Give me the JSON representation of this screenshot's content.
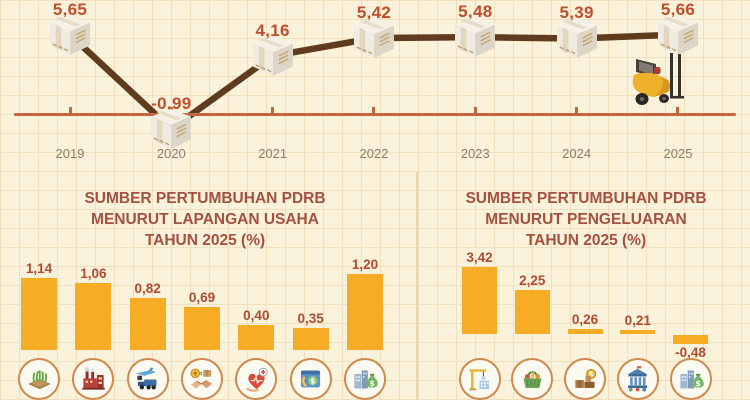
{
  "colors": {
    "background": "#FBF2DB",
    "grid": "#F2DFBD",
    "line": "#5F3C1D",
    "axis": "#C2663F",
    "value_label": "#C14F2E",
    "bar_label": "#B04B30",
    "year_label": "#8E7D68",
    "bar": "#F6AD25",
    "title": "#A6503E",
    "icon_ring": "#D0894E",
    "divider": "#E9D5AE"
  },
  "chart_data": [
    {
      "type": "line",
      "name": "pdrb-growth-by-year",
      "categories": [
        "2019",
        "2020",
        "2021",
        "2022",
        "2023",
        "2024",
        "2025"
      ],
      "values": [
        5.65,
        -0.99,
        4.16,
        5.42,
        5.48,
        5.39,
        5.66
      ],
      "value_labels": [
        "5,65",
        "-0,99",
        "4,16",
        "5,42",
        "5,48",
        "5,39",
        "5,66"
      ],
      "marker": "cardboard-box",
      "annotation": "forklift-carrying-last-box",
      "baseline": 0,
      "grid": true,
      "legend": "none"
    },
    {
      "type": "bar",
      "name": "growth-sources-by-industry",
      "title_lines": [
        "SUMBER PERTUMBUHAN PDRB",
        "MENURUT LAPANGAN USAHA",
        "TAHUN 2025 (%)"
      ],
      "values": [
        1.14,
        1.06,
        0.82,
        0.69,
        0.4,
        0.35,
        1.2
      ],
      "value_labels": [
        "1,14",
        "1,06",
        "0,82",
        "0,69",
        "0,40",
        "0,35",
        "1,20"
      ],
      "icons": [
        "agriculture",
        "factory",
        "transportation",
        "trade",
        "health",
        "finance",
        "others"
      ],
      "grid": true,
      "legend": "none"
    },
    {
      "type": "bar",
      "name": "growth-sources-by-expenditure",
      "title_lines": [
        "SUMBER PERTUMBUHAN PDRB",
        "MENURUT PENGELUARAN",
        "TAHUN 2025 (%)"
      ],
      "values": [
        3.42,
        2.25,
        0.26,
        0.21,
        -0.48
      ],
      "value_labels": [
        "3,42",
        "2,25",
        "0,26",
        "0,21",
        "-0,48"
      ],
      "icons": [
        "investment",
        "consumption",
        "export",
        "government",
        "others"
      ],
      "grid": true,
      "legend": "none"
    }
  ]
}
